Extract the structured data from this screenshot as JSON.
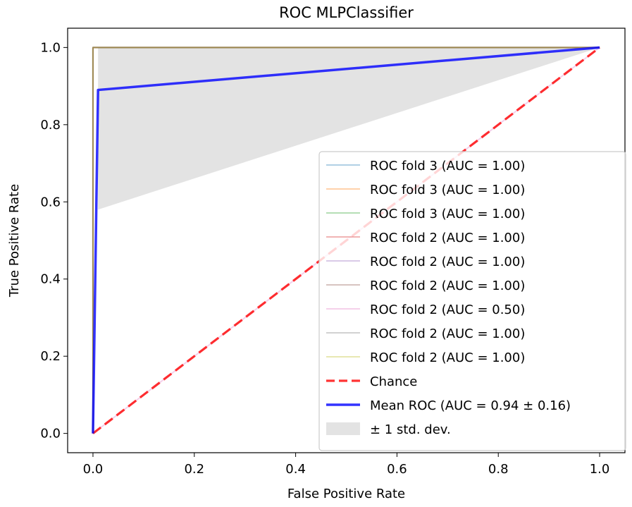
{
  "chart_data": {
    "type": "line",
    "title": "ROC MLPClassifier",
    "xlabel": "False Positive Rate",
    "ylabel": "True Positive Rate",
    "xlim": [
      -0.05,
      1.05
    ],
    "ylim": [
      -0.05,
      1.05
    ],
    "xticks": [
      0.0,
      0.2,
      0.4,
      0.6,
      0.8,
      1.0
    ],
    "yticks": [
      0.0,
      0.2,
      0.4,
      0.6,
      0.8,
      1.0
    ],
    "xtick_labels": [
      "0.0",
      "0.2",
      "0.4",
      "0.6",
      "0.8",
      "1.0"
    ],
    "ytick_labels": [
      "0.0",
      "0.2",
      "0.4",
      "0.6",
      "0.8",
      "1.0"
    ],
    "grid": false,
    "legend_position": "lower-right",
    "fold_curves": [
      {
        "name": "ROC fold 3 (AUC = 1.00)",
        "color": "#1f77b4",
        "x": [
          0,
          0,
          1
        ],
        "y": [
          0,
          1,
          1
        ]
      },
      {
        "name": "ROC fold 3 (AUC = 1.00)",
        "color": "#ff7f0e",
        "x": [
          0,
          0,
          1
        ],
        "y": [
          0,
          1,
          1
        ]
      },
      {
        "name": "ROC fold 3 (AUC = 1.00)",
        "color": "#2ca02c",
        "x": [
          0,
          0,
          1
        ],
        "y": [
          0,
          1,
          1
        ]
      },
      {
        "name": "ROC fold 2 (AUC = 1.00)",
        "color": "#d62728",
        "x": [
          0,
          0,
          1
        ],
        "y": [
          0,
          1,
          1
        ]
      },
      {
        "name": "ROC fold 2 (AUC = 1.00)",
        "color": "#9467bd",
        "x": [
          0,
          0,
          1
        ],
        "y": [
          0,
          1,
          1
        ]
      },
      {
        "name": "ROC fold 2 (AUC = 1.00)",
        "color": "#8c564b",
        "x": [
          0,
          0,
          1
        ],
        "y": [
          0,
          1,
          1
        ]
      },
      {
        "name": "ROC fold 2 (AUC = 0.50)",
        "color": "#e377c2",
        "x": [
          0,
          1
        ],
        "y": [
          0,
          1
        ]
      },
      {
        "name": "ROC fold 2 (AUC = 1.00)",
        "color": "#7f7f7f",
        "x": [
          0,
          0,
          1
        ],
        "y": [
          0,
          1,
          1
        ]
      },
      {
        "name": "ROC fold 2 (AUC = 1.00)",
        "color": "#bcbd22",
        "x": [
          0,
          0,
          1
        ],
        "y": [
          0,
          1,
          1
        ]
      }
    ],
    "chance": {
      "name": "Chance",
      "color": "#ff0000",
      "x": [
        0,
        1
      ],
      "y": [
        0,
        1
      ]
    },
    "mean_roc": {
      "name": "Mean ROC (AUC = 0.94 ± 0.16)",
      "color": "#0000ff",
      "x": [
        0,
        0.01,
        1
      ],
      "y": [
        0,
        0.89,
        1
      ]
    },
    "std_band": {
      "name": "± 1 std. dev.",
      "color": "#b0b0b0",
      "x": [
        0.01,
        1
      ],
      "upper": [
        1,
        1
      ],
      "lower": [
        0.58,
        1
      ]
    }
  }
}
